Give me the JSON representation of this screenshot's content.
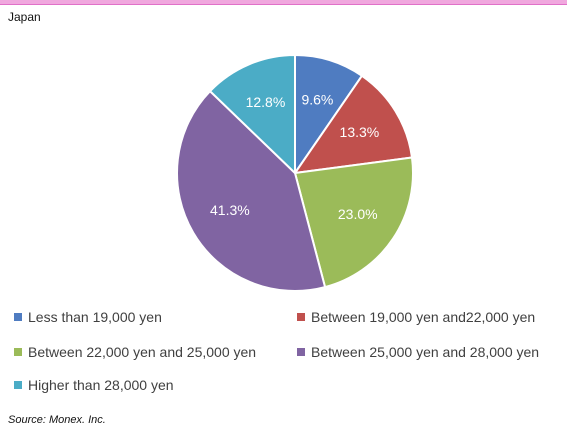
{
  "header": {
    "subtitle": "Japan"
  },
  "chart_data": {
    "type": "pie",
    "categories": [
      "Less than 19,000 yen",
      "Between 19,000 yen and22,000 yen",
      "Between 22,000 yen and 25,000 yen",
      "Between 25,000 yen and 28,000 yen",
      "Higher than 28,000 yen"
    ],
    "values": [
      9.6,
      13.3,
      23.0,
      41.3,
      12.8
    ],
    "data_labels": [
      "9.6%",
      "13.3%",
      "23.0%",
      "41.3%",
      "12.8%"
    ],
    "colors": [
      "#4f7cc1",
      "#c0504d",
      "#9bbb59",
      "#8064a2",
      "#4bacc6"
    ],
    "start_angle": "12 o'clock",
    "direction": "clockwise",
    "legend_position": "bottom"
  },
  "footer": {
    "source": "Source: Monex. Inc."
  }
}
